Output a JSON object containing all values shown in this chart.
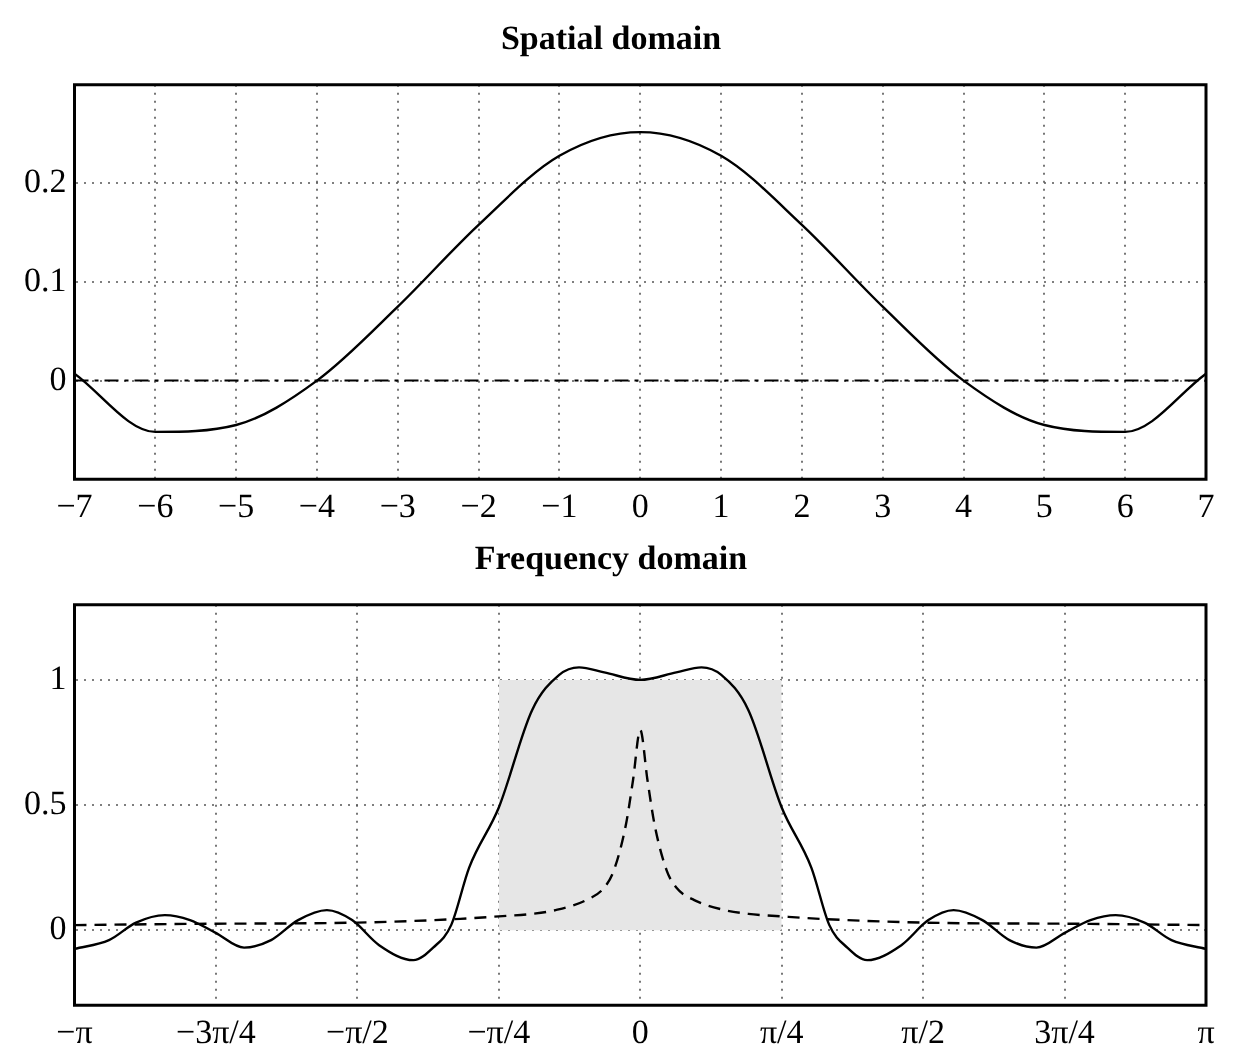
{
  "chart_data": [
    {
      "type": "line",
      "title": "Spatial domain",
      "xlim": [
        -7,
        7
      ],
      "xticks": [
        {
          "value": -7,
          "label": "−7"
        },
        {
          "value": -6,
          "label": "−6"
        },
        {
          "value": -5,
          "label": "−5"
        },
        {
          "value": -4,
          "label": "−4"
        },
        {
          "value": -3,
          "label": "−3"
        },
        {
          "value": -2,
          "label": "−2"
        },
        {
          "value": -1,
          "label": "−1"
        },
        0,
        1,
        2,
        3,
        4,
        5,
        6,
        7
      ],
      "ylim": [
        -0.1,
        0.3
      ],
      "yticks": [
        0,
        0.1,
        0.2
      ],
      "grid": true,
      "legend": false,
      "series": [
        {
          "color": "#000000",
          "x": [
            -7,
            -6,
            -5,
            -4,
            -3,
            -2,
            -1,
            0,
            1,
            2,
            3,
            4,
            5,
            6,
            7
          ],
          "values": [
            0.007,
            -0.052,
            -0.045,
            0,
            0.075,
            0.158,
            0.228,
            0.252,
            0.228,
            0.158,
            0.075,
            0,
            -0.045,
            -0.052,
            0.007
          ],
          "line_style": "solid"
        }
      ],
      "ref_lines": [
        {
          "axis": "y",
          "value": 0,
          "line_style": "dashed",
          "color": "#000000"
        }
      ]
    },
    {
      "type": "line",
      "title": "Frequency domain",
      "xlim": [
        -3.1416,
        3.1416
      ],
      "xticks": [
        {
          "value": -3.1416,
          "label": "−π"
        },
        {
          "value": -2.3562,
          "label": "−3π/4"
        },
        {
          "value": -1.5708,
          "label": "−π/2"
        },
        {
          "value": -0.7854,
          "label": "−π/4"
        },
        0,
        {
          "value": 0.7854,
          "label": "π/4"
        },
        {
          "value": 1.5708,
          "label": "π/2"
        },
        {
          "value": 2.3562,
          "label": "3π/4"
        },
        {
          "value": 3.1416,
          "label": "π"
        }
      ],
      "ylim": [
        -0.3,
        1.3
      ],
      "yticks": [
        0,
        0.5,
        1
      ],
      "grid": true,
      "legend": false,
      "series": [
        {
          "type": "area",
          "color": "#e6e6e6",
          "x": [
            -0.7854,
            -0.7854,
            0.7854,
            0.7854
          ],
          "values": [
            0,
            1,
            1,
            0
          ]
        },
        {
          "color": "#000000",
          "line_style": "dashed",
          "x": [
            -3.1416,
            -2.5,
            -1.5708,
            -1.0,
            -0.7854,
            -0.6,
            -0.47,
            -0.3,
            -0.2,
            -0.146,
            -0.08,
            -0.04,
            0,
            0.04,
            0.08,
            0.146,
            0.2,
            0.3,
            0.47,
            0.6,
            0.7854,
            1.0,
            1.5708,
            2.5,
            3.1416
          ],
          "values": [
            0.02,
            0.025,
            0.03,
            0.045,
            0.055,
            0.065,
            0.08,
            0.12,
            0.17,
            0.24,
            0.42,
            0.6,
            0.8,
            0.6,
            0.42,
            0.24,
            0.17,
            0.12,
            0.08,
            0.065,
            0.055,
            0.045,
            0.03,
            0.025,
            0.02
          ]
        },
        {
          "color": "#000000",
          "line_style": "solid",
          "x": [
            -3.1416,
            -2.95,
            -2.8,
            -2.64,
            -2.5,
            -2.36,
            -2.2,
            -2.05,
            -1.9,
            -1.74,
            -1.6,
            -1.45,
            -1.26,
            -1.15,
            -1.05,
            -0.95,
            -0.7854,
            -0.6,
            -0.45,
            -0.34,
            -0.2,
            0,
            0.2,
            0.34,
            0.45,
            0.6,
            0.7854,
            0.95,
            1.05,
            1.15,
            1.26,
            1.45,
            1.6,
            1.74,
            1.9,
            2.05,
            2.2,
            2.36,
            2.5,
            2.64,
            2.8,
            2.95,
            3.1416
          ],
          "values": [
            -0.075,
            -0.04,
            0.03,
            0.06,
            0.04,
            -0.01,
            -0.07,
            -0.04,
            0.04,
            0.08,
            0.04,
            -0.06,
            -0.12,
            -0.07,
            0.02,
            0.25,
            0.49,
            0.88,
            1.02,
            1.05,
            1.03,
            1.0,
            1.03,
            1.05,
            1.02,
            0.88,
            0.49,
            0.25,
            0.02,
            -0.07,
            -0.12,
            -0.06,
            0.04,
            0.08,
            0.04,
            -0.04,
            -0.07,
            -0.01,
            0.04,
            0.06,
            0.03,
            -0.04,
            -0.075
          ]
        }
      ]
    }
  ]
}
